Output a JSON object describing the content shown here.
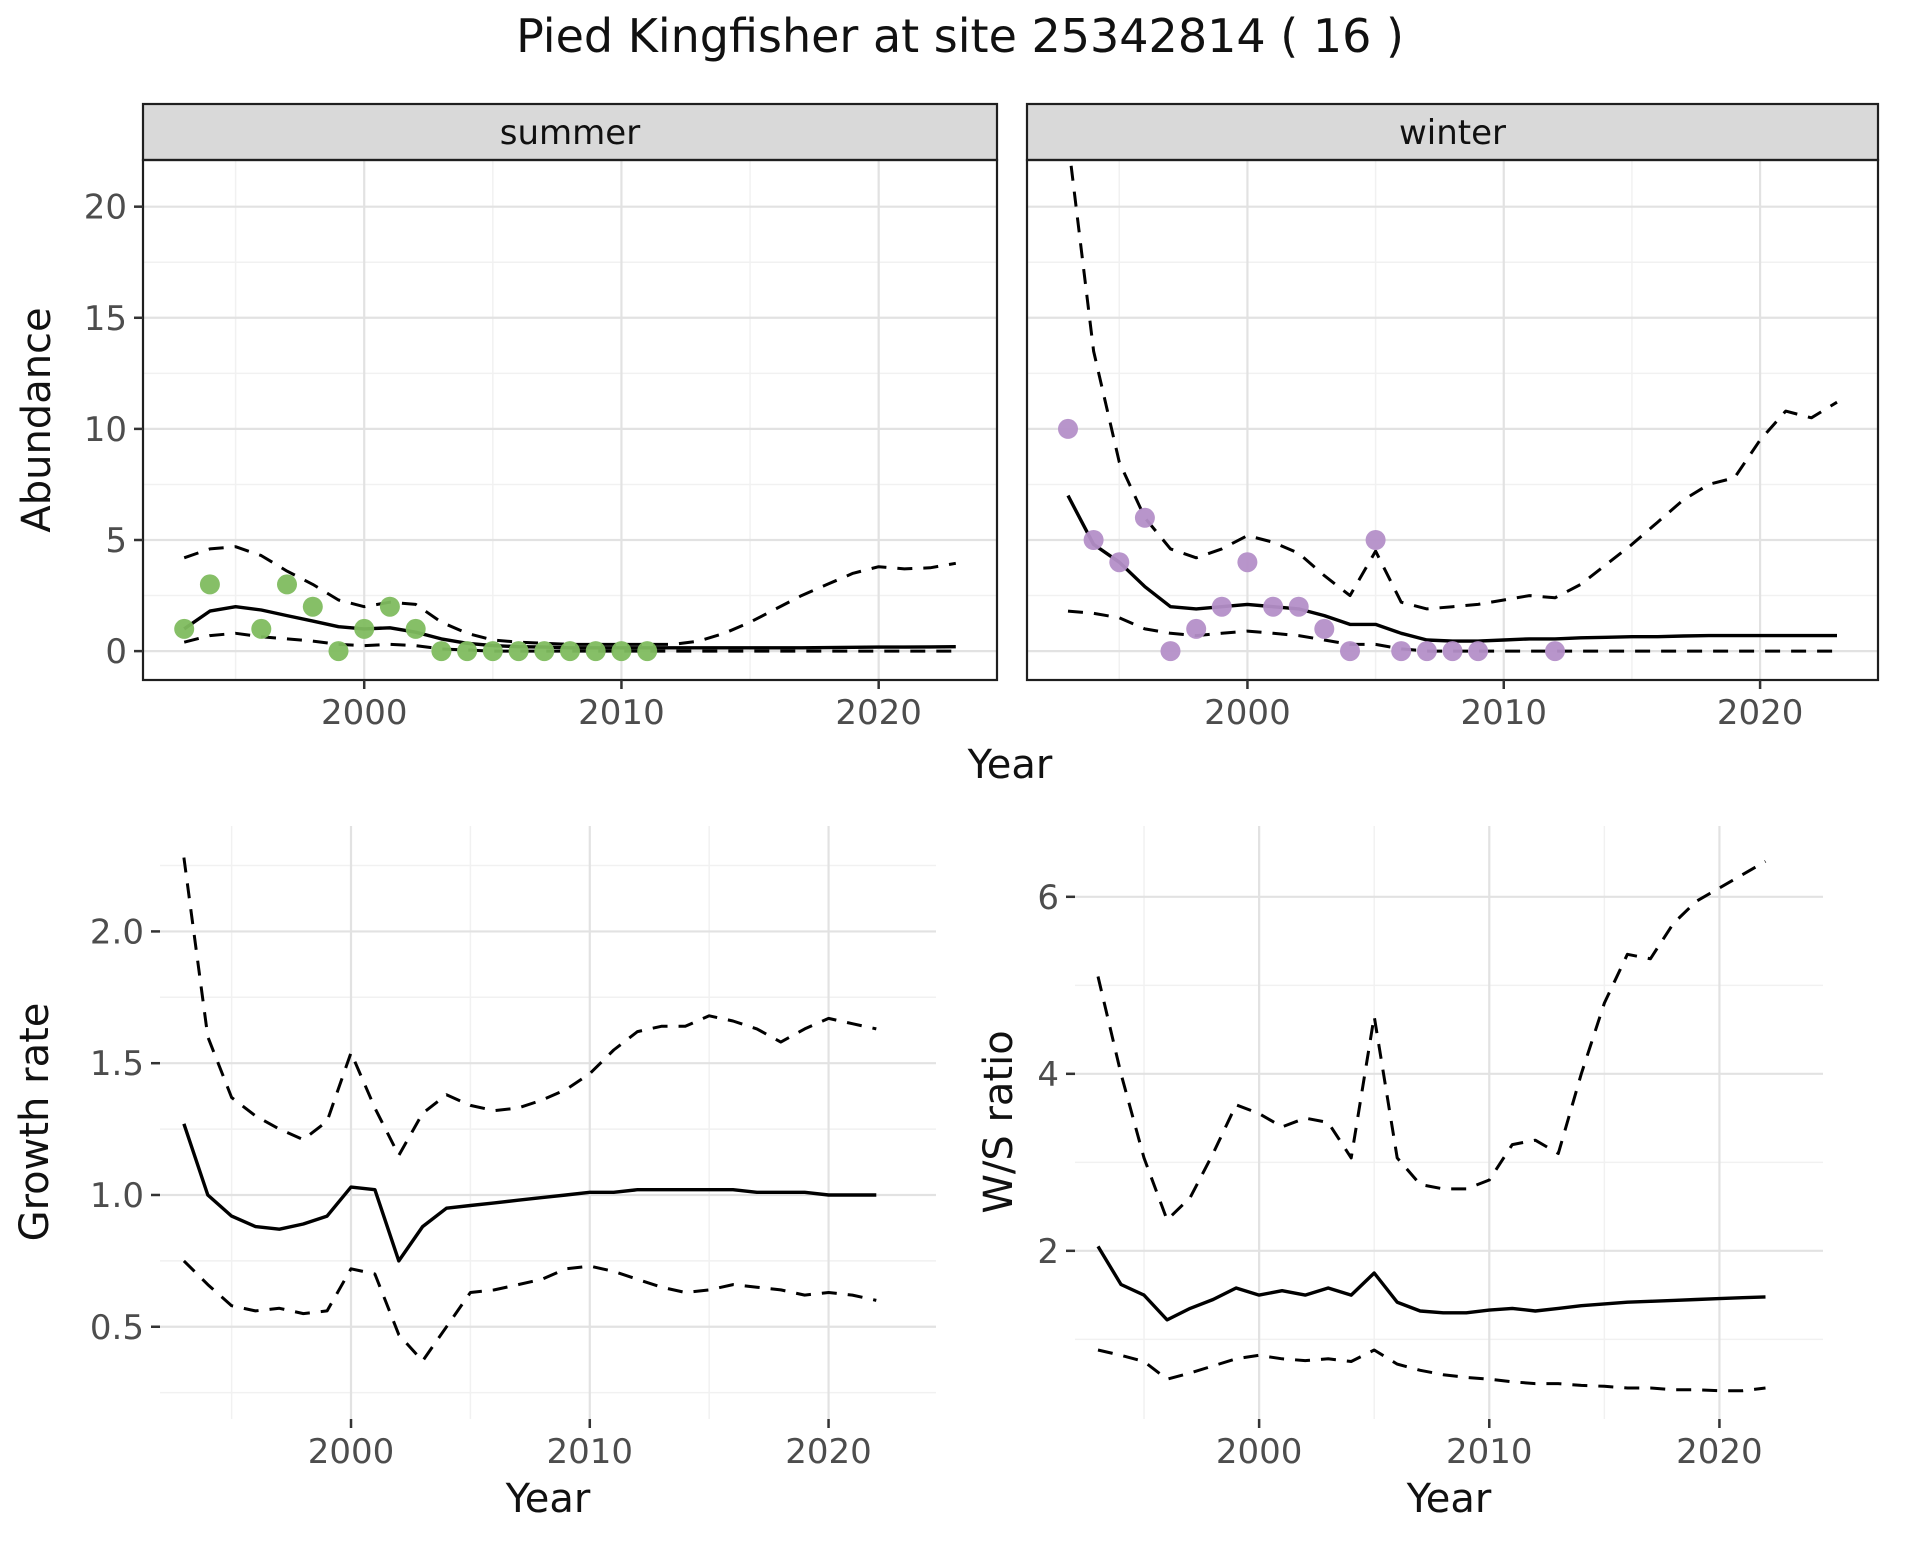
{
  "title": "Pied Kingfisher at site 25342814 ( 16 )",
  "colors": {
    "background": "#ffffff",
    "line": "#000000",
    "grid_major": "#e2e2e2",
    "grid_minor": "#f1f1f1",
    "strip_bg": "#d9d9d9",
    "border": "#1f1f1f",
    "tick": "#333333",
    "tick_label": "#4d4d4d",
    "text": "#111111",
    "summer_point": "#7fbc5f",
    "winter_point": "#b48fc8"
  },
  "chart_data": [
    {
      "id": "abundance-summer",
      "type": "line",
      "facet": "summer",
      "ylabel": "Abundance",
      "xlabel": "Year",
      "x": [
        1993,
        1994,
        1995,
        1996,
        1997,
        1998,
        1999,
        2000,
        2001,
        2002,
        2003,
        2004,
        2005,
        2006,
        2007,
        2008,
        2009,
        2010,
        2011,
        2012,
        2013,
        2014,
        2015,
        2016,
        2017,
        2018,
        2019,
        2020,
        2021,
        2022,
        2023
      ],
      "xlim": [
        1991.4,
        2024.6
      ],
      "ylim": [
        -1.3,
        22.1
      ],
      "xticks": [
        2000,
        2010,
        2020
      ],
      "xtick_labels": [
        "2000",
        "2010",
        "2020"
      ],
      "xticks_minor": [
        1995,
        2005,
        2015
      ],
      "yticks": [
        0,
        5,
        10,
        15,
        20
      ],
      "ytick_labels": [
        "0",
        "5",
        "10",
        "15",
        "20"
      ],
      "yticks_minor": [
        2.5,
        7.5,
        12.5,
        17.5
      ],
      "series": [
        {
          "name": "mean",
          "style": "solid",
          "values": [
            1.0,
            1.8,
            2.0,
            1.85,
            1.6,
            1.35,
            1.1,
            1.0,
            1.05,
            0.85,
            0.55,
            0.35,
            0.25,
            0.2,
            0.18,
            0.15,
            0.15,
            0.15,
            0.15,
            0.15,
            0.15,
            0.15,
            0.15,
            0.15,
            0.15,
            0.16,
            0.17,
            0.18,
            0.18,
            0.19,
            0.2
          ]
        },
        {
          "name": "upper_ci",
          "style": "dashed",
          "values": [
            4.2,
            4.6,
            4.7,
            4.3,
            3.6,
            3.0,
            2.3,
            2.0,
            2.2,
            2.1,
            1.3,
            0.8,
            0.5,
            0.4,
            0.35,
            0.3,
            0.3,
            0.3,
            0.3,
            0.3,
            0.45,
            0.8,
            1.3,
            1.9,
            2.5,
            3.0,
            3.5,
            3.8,
            3.7,
            3.75,
            3.95
          ]
        },
        {
          "name": "lower_ci",
          "style": "dashed",
          "values": [
            0.4,
            0.7,
            0.8,
            0.65,
            0.55,
            0.45,
            0.3,
            0.25,
            0.3,
            0.25,
            0.1,
            0.05,
            0,
            0,
            0,
            0,
            0,
            0,
            0,
            0,
            0,
            0,
            0,
            0,
            0,
            0,
            0,
            0,
            0,
            0,
            0
          ]
        }
      ],
      "point_color_key": "summer_point",
      "points": [
        [
          1993,
          1
        ],
        [
          1994,
          3
        ],
        [
          1996,
          1
        ],
        [
          1997,
          3
        ],
        [
          1998,
          2
        ],
        [
          1999,
          0
        ],
        [
          2000,
          1
        ],
        [
          2001,
          2
        ],
        [
          2002,
          1
        ],
        [
          2003,
          0
        ],
        [
          2004,
          0
        ],
        [
          2005,
          0
        ],
        [
          2006,
          0
        ],
        [
          2007,
          0
        ],
        [
          2008,
          0
        ],
        [
          2009,
          0
        ],
        [
          2010,
          0
        ],
        [
          2011,
          0
        ]
      ]
    },
    {
      "id": "abundance-winter",
      "type": "line",
      "facet": "winter",
      "ylabel": null,
      "xlabel": null,
      "x": [
        1993,
        1994,
        1995,
        1996,
        1997,
        1998,
        1999,
        2000,
        2001,
        2002,
        2003,
        2004,
        2005,
        2006,
        2007,
        2008,
        2009,
        2010,
        2011,
        2012,
        2013,
        2014,
        2015,
        2016,
        2017,
        2018,
        2019,
        2020,
        2021,
        2022,
        2023
      ],
      "xlim": [
        1991.4,
        2024.6
      ],
      "ylim": [
        -1.3,
        22.1
      ],
      "xticks": [
        2000,
        2010,
        2020
      ],
      "xtick_labels": [
        "2000",
        "2010",
        "2020"
      ],
      "xticks_minor": [
        1995,
        2005,
        2015
      ],
      "yticks": [
        0,
        5,
        10,
        15,
        20
      ],
      "ytick_labels": [
        "0",
        "5",
        "10",
        "15",
        "20"
      ],
      "yticks_minor": [
        2.5,
        7.5,
        12.5,
        17.5
      ],
      "series": [
        {
          "name": "mean",
          "style": "solid",
          "values": [
            7.0,
            4.8,
            4.0,
            2.9,
            2.0,
            1.9,
            2.0,
            2.1,
            2.0,
            1.9,
            1.6,
            1.2,
            1.2,
            0.8,
            0.5,
            0.45,
            0.45,
            0.5,
            0.55,
            0.55,
            0.6,
            0.62,
            0.65,
            0.65,
            0.68,
            0.7,
            0.7,
            0.7,
            0.7,
            0.7,
            0.7
          ]
        },
        {
          "name": "upper_ci",
          "style": "dashed",
          "values": [
            23,
            13.5,
            8.5,
            6.0,
            4.6,
            4.2,
            4.6,
            5.2,
            4.9,
            4.4,
            3.4,
            2.5,
            4.5,
            2.2,
            1.9,
            2.0,
            2.1,
            2.3,
            2.5,
            2.4,
            3.0,
            3.9,
            4.8,
            5.8,
            6.8,
            7.5,
            7.8,
            9.5,
            10.8,
            10.5,
            11.2
          ]
        },
        {
          "name": "lower_ci",
          "style": "dashed",
          "values": [
            1.8,
            1.7,
            1.5,
            1.0,
            0.8,
            0.7,
            0.8,
            0.9,
            0.8,
            0.7,
            0.5,
            0.3,
            0.3,
            0.1,
            0,
            0,
            0,
            0,
            0,
            0,
            0,
            0,
            0,
            0,
            0,
            0,
            0,
            0,
            0,
            0,
            0
          ]
        }
      ],
      "point_color_key": "winter_point",
      "points": [
        [
          1993,
          10
        ],
        [
          1994,
          5
        ],
        [
          1995,
          4
        ],
        [
          1996,
          6
        ],
        [
          1997,
          0
        ],
        [
          1998,
          1
        ],
        [
          1999,
          2
        ],
        [
          2000,
          4
        ],
        [
          2001,
          2
        ],
        [
          2002,
          2
        ],
        [
          2003,
          1
        ],
        [
          2004,
          0
        ],
        [
          2005,
          5
        ],
        [
          2006,
          0
        ],
        [
          2007,
          0
        ],
        [
          2008,
          0
        ],
        [
          2009,
          0
        ],
        [
          2012,
          0
        ]
      ]
    },
    {
      "id": "growth-rate",
      "type": "line",
      "facet": null,
      "ylabel": "Growth rate",
      "xlabel": "Year",
      "x": [
        1993,
        1994,
        1995,
        1996,
        1997,
        1998,
        1999,
        2000,
        2001,
        2002,
        2003,
        2004,
        2005,
        2006,
        2007,
        2008,
        2009,
        2010,
        2011,
        2012,
        2013,
        2014,
        2015,
        2016,
        2017,
        2018,
        2019,
        2020,
        2021,
        2022
      ],
      "xlim": [
        1992.0,
        2024.5
      ],
      "ylim": [
        0.15,
        2.4
      ],
      "xticks": [
        2000,
        2010,
        2020
      ],
      "xtick_labels": [
        "2000",
        "2010",
        "2020"
      ],
      "xticks_minor": [
        1995,
        2005,
        2015
      ],
      "yticks": [
        0.5,
        1.0,
        1.5,
        2.0
      ],
      "ytick_labels": [
        "0.5",
        "1.0",
        "1.5",
        "2.0"
      ],
      "yticks_minor": [
        0.25,
        0.75,
        1.25,
        1.75,
        2.25
      ],
      "series": [
        {
          "name": "mean",
          "style": "solid",
          "values": [
            1.27,
            1.0,
            0.92,
            0.88,
            0.87,
            0.89,
            0.92,
            1.03,
            1.02,
            0.75,
            0.88,
            0.95,
            0.96,
            0.97,
            0.98,
            0.99,
            1.0,
            1.01,
            1.01,
            1.02,
            1.02,
            1.02,
            1.02,
            1.02,
            1.01,
            1.01,
            1.01,
            1.0,
            1.0,
            1.0
          ]
        },
        {
          "name": "upper_ci",
          "style": "dashed",
          "values": [
            2.28,
            1.6,
            1.37,
            1.3,
            1.25,
            1.21,
            1.28,
            1.54,
            1.33,
            1.15,
            1.31,
            1.38,
            1.34,
            1.32,
            1.33,
            1.36,
            1.4,
            1.46,
            1.55,
            1.62,
            1.64,
            1.64,
            1.68,
            1.66,
            1.63,
            1.58,
            1.63,
            1.67,
            1.65,
            1.63
          ]
        },
        {
          "name": "lower_ci",
          "style": "dashed",
          "values": [
            0.75,
            0.66,
            0.58,
            0.56,
            0.57,
            0.55,
            0.56,
            0.72,
            0.7,
            0.47,
            0.37,
            0.5,
            0.63,
            0.64,
            0.66,
            0.68,
            0.72,
            0.73,
            0.71,
            0.68,
            0.65,
            0.63,
            0.64,
            0.66,
            0.65,
            0.64,
            0.62,
            0.63,
            0.62,
            0.6
          ]
        }
      ],
      "point_color_key": null,
      "points": []
    },
    {
      "id": "ws-ratio",
      "type": "line",
      "facet": null,
      "ylabel": "W/S ratio",
      "xlabel": "Year",
      "x": [
        1993,
        1994,
        1995,
        1996,
        1997,
        1998,
        1999,
        2000,
        2001,
        2002,
        2003,
        2004,
        2005,
        2006,
        2007,
        2008,
        2009,
        2010,
        2011,
        2012,
        2013,
        2014,
        2015,
        2016,
        2017,
        2018,
        2019,
        2020,
        2021,
        2022
      ],
      "xlim": [
        1992.0,
        2024.5
      ],
      "ylim": [
        0.1,
        6.8
      ],
      "xticks": [
        2000,
        2010,
        2020
      ],
      "xtick_labels": [
        "2000",
        "2010",
        "2020"
      ],
      "xticks_minor": [
        1995,
        2005,
        2015
      ],
      "yticks": [
        2,
        4,
        6
      ],
      "ytick_labels": [
        "2",
        "4",
        "6"
      ],
      "yticks_minor": [
        1,
        3,
        5
      ],
      "series": [
        {
          "name": "mean",
          "style": "solid",
          "values": [
            2.05,
            1.62,
            1.5,
            1.22,
            1.35,
            1.45,
            1.58,
            1.5,
            1.55,
            1.5,
            1.58,
            1.5,
            1.75,
            1.42,
            1.32,
            1.3,
            1.3,
            1.33,
            1.35,
            1.32,
            1.35,
            1.38,
            1.4,
            1.42,
            1.43,
            1.44,
            1.45,
            1.46,
            1.47,
            1.48
          ]
        },
        {
          "name": "upper_ci",
          "style": "dashed",
          "values": [
            5.1,
            4.0,
            3.05,
            2.35,
            2.6,
            3.1,
            3.65,
            3.55,
            3.4,
            3.5,
            3.45,
            3.05,
            4.65,
            3.05,
            2.75,
            2.7,
            2.7,
            2.8,
            3.2,
            3.25,
            3.1,
            4.0,
            4.8,
            5.35,
            5.3,
            5.7,
            5.95,
            6.1,
            6.25,
            6.4
          ]
        },
        {
          "name": "lower_ci",
          "style": "dashed",
          "values": [
            0.88,
            0.82,
            0.75,
            0.55,
            0.62,
            0.7,
            0.78,
            0.82,
            0.78,
            0.76,
            0.78,
            0.75,
            0.88,
            0.72,
            0.65,
            0.6,
            0.57,
            0.55,
            0.52,
            0.5,
            0.5,
            0.48,
            0.47,
            0.45,
            0.45,
            0.43,
            0.43,
            0.42,
            0.42,
            0.45
          ]
        }
      ],
      "point_color_key": null,
      "points": []
    }
  ]
}
